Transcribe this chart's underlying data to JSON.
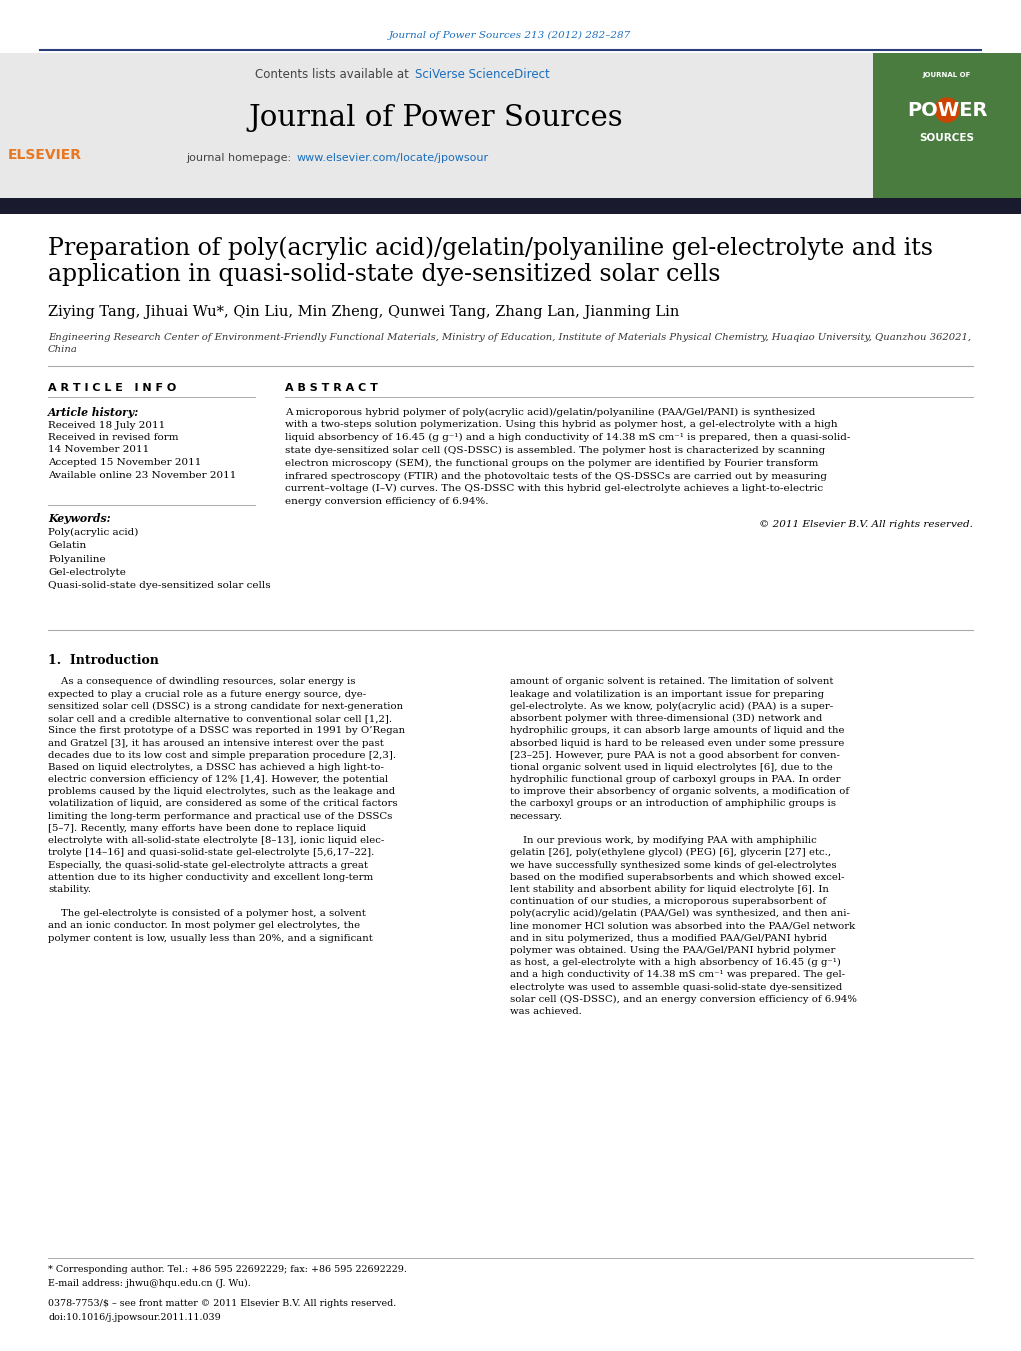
{
  "bg_color": "#ffffff",
  "top_journal_ref": "Journal of Power Sources 213 (2012) 282–287",
  "top_journal_ref_color": "#1a6ebc",
  "header_bg": "#e8e8e8",
  "header_text_contents": "Contents lists available at",
  "header_sciverse": "SciVerse ScienceDirect",
  "header_sciverse_color": "#1a6ebc",
  "journal_name": "Journal of Power Sources",
  "journal_homepage_text": "journal homepage:",
  "journal_homepage_url": "www.elsevier.com/locate/jpowsour",
  "journal_homepage_url_color": "#1a6ebc",
  "dark_bar_color": "#1a1a2e",
  "paper_title_line1": "Preparation of poly(acrylic acid)/gelatin/polyaniline gel-electrolyte and its",
  "paper_title_line2": "application in quasi-solid-state dye-sensitized solar cells",
  "authors": "Ziying Tang, Jihuai Wu*, Qin Liu, Min Zheng, Qunwei Tang, Zhang Lan, Jianming Lin",
  "affiliation_line1": "Engineering Research Center of Environment-Friendly Functional Materials, Ministry of Education, Institute of Materials Physical Chemistry, Huaqiao University, Quanzhou 362021,",
  "affiliation_line2": "China",
  "article_info_title": "A R T I C L E   I N F O",
  "abstract_title": "A B S T R A C T",
  "article_history_label": "Article history:",
  "article_history_lines": [
    "Received 18 July 2011",
    "Received in revised form",
    "14 November 2011",
    "Accepted 15 November 2011",
    "Available online 23 November 2011"
  ],
  "keywords_label": "Keywords:",
  "keywords_lines": [
    "Poly(acrylic acid)",
    "Gelatin",
    "Polyaniline",
    "Gel-electrolyte",
    "Quasi-solid-state dye-sensitized solar cells"
  ],
  "abstract_lines": [
    "A microporous hybrid polymer of poly(acrylic acid)/gelatin/polyaniline (PAA/Gel/PANI) is synthesized",
    "with a two-steps solution polymerization. Using this hybrid as polymer host, a gel-electrolyte with a high",
    "liquid absorbency of 16.45 (g g⁻¹) and a high conductivity of 14.38 mS cm⁻¹ is prepared, then a quasi-solid-",
    "state dye-sensitized solar cell (QS-DSSC) is assembled. The polymer host is characterized by scanning",
    "electron microscopy (SEM), the functional groups on the polymer are identified by Fourier transform",
    "infrared spectroscopy (FTIR) and the photovoltaic tests of the QS-DSSCs are carried out by measuring",
    "current–voltage (I–V) curves. The QS-DSSC with this hybrid gel-electrolyte achieves a light-to-electric",
    "energy conversion efficiency of 6.94%."
  ],
  "copyright": "© 2011 Elsevier B.V. All rights reserved.",
  "section1_title": "1.  Introduction",
  "intro_col1_lines": [
    "    As a consequence of dwindling resources, solar energy is",
    "expected to play a crucial role as a future energy source, dye-",
    "sensitized solar cell (DSSC) is a strong candidate for next-generation",
    "solar cell and a credible alternative to conventional solar cell [1,2].",
    "Since the first prototype of a DSSC was reported in 1991 by O’Regan",
    "and Gratzel [3], it has aroused an intensive interest over the past",
    "decades due to its low cost and simple preparation procedure [2,3].",
    "Based on liquid electrolytes, a DSSC has achieved a high light-to-",
    "electric conversion efficiency of 12% [1,4]. However, the potential",
    "problems caused by the liquid electrolytes, such as the leakage and",
    "volatilization of liquid, are considered as some of the critical factors",
    "limiting the long-term performance and practical use of the DSSCs",
    "[5–7]. Recently, many efforts have been done to replace liquid",
    "electrolyte with all-solid-state electrolyte [8–13], ionic liquid elec-",
    "trolyte [14–16] and quasi-solid-state gel-electrolyte [5,6,17–22].",
    "Especially, the quasi-solid-state gel-electrolyte attracts a great",
    "attention due to its higher conductivity and excellent long-term",
    "stability.",
    "",
    "    The gel-electrolyte is consisted of a polymer host, a solvent",
    "and an ionic conductor. In most polymer gel electrolytes, the",
    "polymer content is low, usually less than 20%, and a significant"
  ],
  "intro_col2_lines": [
    "amount of organic solvent is retained. The limitation of solvent",
    "leakage and volatilization is an important issue for preparing",
    "gel-electrolyte. As we know, poly(acrylic acid) (PAA) is a super-",
    "absorbent polymer with three-dimensional (3D) network and",
    "hydrophilic groups, it can absorb large amounts of liquid and the",
    "absorbed liquid is hard to be released even under some pressure",
    "[23–25]. However, pure PAA is not a good absorbent for conven-",
    "tional organic solvent used in liquid electrolytes [6], due to the",
    "hydrophilic functional group of carboxyl groups in PAA. In order",
    "to improve their absorbency of organic solvents, a modification of",
    "the carboxyl groups or an introduction of amphiphilic groups is",
    "necessary.",
    "",
    "    In our previous work, by modifying PAA with amphiphilic",
    "gelatin [26], poly(ethylene glycol) (PEG) [6], glycerin [27] etc.,",
    "we have successfully synthesized some kinds of gel-electrolytes",
    "based on the modified superabsorbents and which showed excel-",
    "lent stability and absorbent ability for liquid electrolyte [6]. In",
    "continuation of our studies, a microporous superabsorbent of",
    "poly(acrylic acid)/gelatin (PAA/Gel) was synthesized, and then ani-",
    "line monomer HCl solution was absorbed into the PAA/Gel network",
    "and in situ polymerized, thus a modified PAA/Gel/PANI hybrid",
    "polymer was obtained. Using the PAA/Gel/PANI hybrid polymer",
    "as host, a gel-electrolyte with a high absorbency of 16.45 (g g⁻¹)",
    "and a high conductivity of 14.38 mS cm⁻¹ was prepared. The gel-",
    "electrolyte was used to assemble quasi-solid-state dye-sensitized",
    "solar cell (QS-DSSC), and an energy conversion efficiency of 6.94%",
    "was achieved."
  ],
  "footnote_star": "* Corresponding author. Tel.: +86 595 22692229; fax: +86 595 22692229.",
  "footnote_email": "E-mail address: jhwu@hqu.edu.cn (J. Wu).",
  "footer_issn": "0378-7753/$ – see front matter © 2011 Elsevier B.V. All rights reserved.",
  "footer_doi": "doi:10.1016/j.jpowsour.2011.11.039",
  "elsevier_color": "#e87722",
  "cover_green": "#4a7c3f",
  "cover_orange": "#cc4400",
  "header_rule_color": "#2c3e7a",
  "separator_color": "#aaaaaa",
  "body_text_color": "#000000",
  "link_color": "#1a6ebc"
}
